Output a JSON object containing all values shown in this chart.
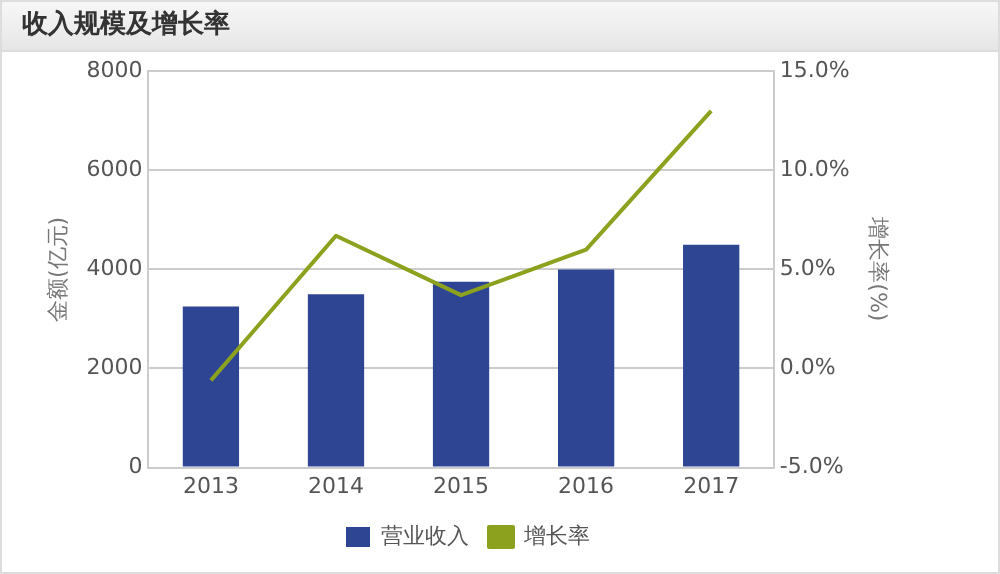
{
  "chart_data": {
    "type": "bar",
    "title": "收入规模及增长率",
    "ylabel": "金额(亿元)",
    "y2label": "增长率(%)",
    "categories": [
      "2013",
      "2014",
      "2015",
      "2016",
      "2017"
    ],
    "series": [
      {
        "name": "营业收入",
        "color": "#2e4593",
        "values": [
          3250,
          3500,
          3750,
          4000,
          4500
        ]
      },
      {
        "name": "增长率",
        "type": "line",
        "axis": "y2",
        "color": "#8ca21f",
        "marker": "none",
        "values": [
          -0.6,
          6.7,
          3.7,
          6.0,
          13.0
        ]
      }
    ],
    "ylim": [
      0,
      8000
    ],
    "yticks": [
      0,
      2000,
      4000,
      6000,
      8000
    ],
    "y2lim": [
      -5,
      15
    ],
    "y2ticks": [
      {
        "value": -5,
        "label": "-5.0%"
      },
      {
        "value": 0,
        "label": "0.0%"
      },
      {
        "value": 5,
        "label": "5.0%"
      },
      {
        "value": 10,
        "label": "10.0%"
      },
      {
        "value": 15,
        "label": "15.0%"
      }
    ],
    "grid": "y",
    "legend": "bottom"
  }
}
